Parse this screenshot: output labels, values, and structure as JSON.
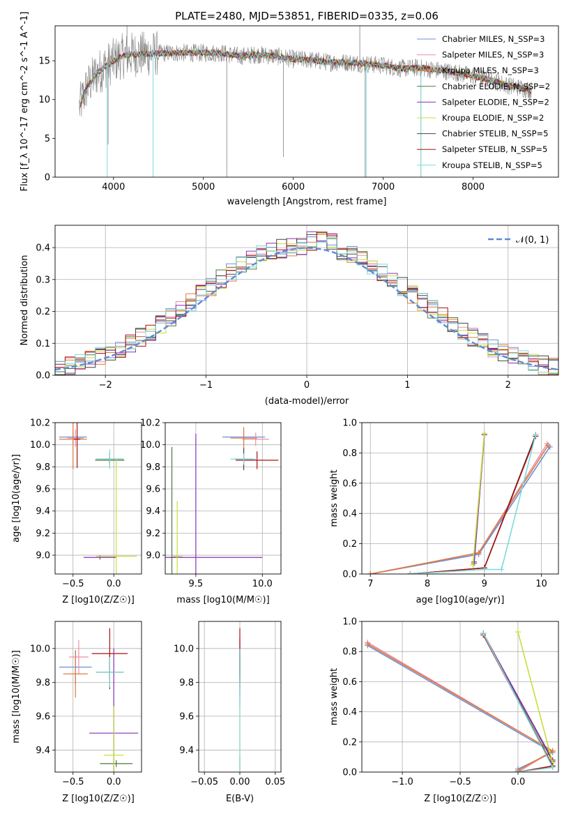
{
  "title": "PLATE=2480, MJD=53851, FIBERID=0335, z=0.06",
  "colors": {
    "chab_miles": "#6a8fd8",
    "salp_miles": "#e98fa6",
    "krou_miles": "#e07a3a",
    "chab_elodie": "#4a7a3a",
    "salp_elodie": "#8a2fb5",
    "krou_elodie": "#c8de3a",
    "chab_stelib": "#444444",
    "salp_stelib": "#a81010",
    "krou_stelib": "#7fd9d9",
    "data": "#808080",
    "normal": "#5b8ad6",
    "grid": "#b0b0b0"
  },
  "chart_data": [
    {
      "type": "line",
      "id": "spectrum",
      "title": "PLATE=2480, MJD=53851, FIBERID=0335, z=0.06",
      "xlabel": "wavelength [Angstrom, rest frame]",
      "ylabel": "Flux [f_λ 10^-17 erg cm^-2 s^-1 A^-1]",
      "xlim": [
        3350,
        8950
      ],
      "ylim": [
        0,
        19.5
      ],
      "xticks": [
        "4000",
        "5000",
        "6000",
        "7000",
        "8000"
      ],
      "yticks": [
        "0",
        "5",
        "10",
        "15"
      ],
      "legend_position": "upper right",
      "legend": [
        "Chabrier MILES, N_SSP=3",
        "Salpeter MILES, N_SSP=3",
        "Kroupa MILES, N_SSP=3",
        "Chabrier ELODIE, N_SSP=2",
        "Salpeter ELODIE, N_SSP=2",
        "Kroupa ELODIE, N_SSP=2",
        "Chabrier STELIB, N_SSP=5",
        "Salpeter STELIB, N_SSP=5",
        "Kroupa STELIB, N_SSP=5"
      ],
      "continuum_x": [
        3620,
        3700,
        3800,
        3900,
        4000,
        4100,
        4200,
        4400,
        4600,
        4800,
        5000,
        5200,
        5400,
        5600,
        5800,
        6000,
        6200,
        6400,
        6600,
        6800,
        7000,
        7200,
        7400,
        7600,
        7800,
        8000,
        8200,
        8400,
        8650
      ],
      "continuum_y": [
        9.0,
        11.5,
        13.2,
        14.2,
        15.0,
        15.6,
        15.8,
        15.9,
        16.0,
        16.0,
        16.0,
        16.0,
        15.6,
        15.8,
        15.6,
        15.2,
        15.1,
        14.8,
        14.8,
        14.6,
        14.4,
        14.0,
        14.1,
        13.8,
        13.5,
        13.0,
        12.5,
        11.8,
        11.2
      ],
      "spikes": [
        {
          "x": 3940,
          "y": 4.2
        },
        {
          "x": 4440,
          "y": 0.0
        },
        {
          "x": 5260,
          "y": 0.0
        },
        {
          "x": 5890,
          "y": 2.6
        },
        {
          "x": 6800,
          "y": 0.0
        },
        {
          "x": 7420,
          "y": 0.0
        },
        {
          "x": 6740,
          "y": 19.5
        },
        {
          "x": 4150,
          "y": 19.5
        }
      ]
    },
    {
      "type": "bar",
      "id": "residuals",
      "xlabel": "(data-model)/error",
      "ylabel": "Normed distribution",
      "xlim": [
        -2.5,
        2.5
      ],
      "ylim": [
        0,
        0.47
      ],
      "xticks": [
        "−2",
        "−1",
        "0",
        "1",
        "2"
      ],
      "yticks": [
        "0.0",
        "0.1",
        "0.2",
        "0.3",
        "0.4"
      ],
      "legend_position": "upper right",
      "legend": [
        "𝒩(0, 1)"
      ],
      "bin_width": 0.1
    },
    {
      "type": "scatter",
      "id": "age_vs_Z",
      "xlabel": "Z [log10(Z/Z☉)]",
      "ylabel": "age  [log10(age/yr)]",
      "xlim": [
        -0.72,
        0.34
      ],
      "ylim": [
        8.83,
        10.2
      ],
      "xticks": [
        "−0.5",
        "0.0"
      ],
      "yticks": [
        "9.0",
        "9.2",
        "9.4",
        "9.6",
        "9.8",
        "10.0",
        "10.2"
      ],
      "points": [
        {
          "model": "chab_miles",
          "x": -0.5,
          "y": 10.07,
          "xerr": 0.17,
          "yerr": 0.06
        },
        {
          "model": "salp_miles",
          "x": -0.47,
          "y": 10.06,
          "xerr": 0.1,
          "yerr": 0.08
        },
        {
          "model": "krou_miles",
          "x": -0.5,
          "y": 10.05,
          "xerr": 0.17,
          "yerr": 0.27
        },
        {
          "model": "chab_elodie",
          "x": -0.05,
          "y": 9.86,
          "xerr": 0.18,
          "yerr": 0.03
        },
        {
          "model": "salp_elodie",
          "x": -0.17,
          "y": 8.98,
          "xerr": 0.2,
          "yerr": 0.02
        },
        {
          "model": "krou_elodie",
          "x": 0.03,
          "y": 8.99,
          "xerr": 0.25,
          "yerr": 0.88
        },
        {
          "model": "chab_stelib",
          "x": -0.05,
          "y": 9.87,
          "xerr": 0.17,
          "yerr": 0.06
        },
        {
          "model": "salp_stelib",
          "x": -0.45,
          "y": 10.05,
          "xerr": 0.04,
          "yerr": 0.26
        },
        {
          "model": "krou_stelib",
          "x": -0.05,
          "y": 9.87,
          "xerr": 0.17,
          "yerr": 0.09
        }
      ]
    },
    {
      "type": "scatter",
      "id": "age_vs_mass",
      "xlabel": "mass [log10(M/M☉)]",
      "ylabel": "",
      "xlim": [
        9.27,
        10.14
      ],
      "ylim": [
        8.83,
        10.2
      ],
      "xticks": [
        "9.5",
        "10.0"
      ],
      "yticks": [
        "9.0",
        "9.2",
        "9.4",
        "9.6",
        "9.8",
        "10.0",
        "10.2"
      ],
      "points": [
        {
          "model": "chab_miles",
          "x": 9.86,
          "y": 10.07,
          "xerr": 0.16,
          "yerr": 0.06
        },
        {
          "model": "salp_miles",
          "x": 9.95,
          "y": 10.05,
          "xerr": 0.1,
          "yerr": 0.06
        },
        {
          "model": "krou_miles",
          "x": 9.86,
          "y": 10.06,
          "xerr": 0.1,
          "yerr": 0.1
        },
        {
          "model": "chab_elodie",
          "x": 9.32,
          "y": 8.98,
          "xerr": 0.02,
          "yerr": 1.0
        },
        {
          "model": "salp_elodie",
          "x": 9.5,
          "y": 8.98,
          "xerr": 0.5,
          "yerr": 1.12
        },
        {
          "model": "krou_elodie",
          "x": 9.36,
          "y": 8.99,
          "xerr": 0.04,
          "yerr": 0.5
        },
        {
          "model": "chab_stelib",
          "x": 9.86,
          "y": 9.87,
          "xerr": 0.07,
          "yerr": 0.1
        },
        {
          "model": "salp_stelib",
          "x": 9.96,
          "y": 9.86,
          "xerr": 0.16,
          "yerr": 0.08
        },
        {
          "model": "krou_stelib",
          "x": 9.86,
          "y": 9.87,
          "xerr": 0.1,
          "yerr": 0.05
        }
      ]
    },
    {
      "type": "line",
      "id": "weight_vs_age",
      "xlabel": "age  [log10(age/yr)]",
      "ylabel": "mass weight",
      "xlim": [
        6.85,
        10.3
      ],
      "ylim": [
        0,
        1
      ],
      "xticks": [
        "7",
        "8",
        "9",
        "10"
      ],
      "yticks": [
        "0.0",
        "0.2",
        "0.4",
        "0.6",
        "0.8",
        "1.0"
      ],
      "series": [
        {
          "model": "chab_miles",
          "x": [
            7.0,
            8.9,
            10.15
          ],
          "y": [
            0.0,
            0.13,
            0.84
          ]
        },
        {
          "model": "salp_miles",
          "x": [
            7.0,
            8.9,
            10.1
          ],
          "y": [
            0.0,
            0.14,
            0.86
          ]
        },
        {
          "model": "krou_miles",
          "x": [
            7.0,
            8.9,
            10.12
          ],
          "y": [
            0.0,
            0.14,
            0.85
          ]
        },
        {
          "model": "chab_elodie",
          "x": [
            8.82,
            9.0
          ],
          "y": [
            0.07,
            0.92
          ]
        },
        {
          "model": "salp_elodie",
          "x": [
            8.82,
            9.0
          ],
          "y": [
            0.08,
            0.92
          ]
        },
        {
          "model": "krou_elodie",
          "x": [
            8.8,
            9.0
          ],
          "y": [
            0.06,
            0.93
          ]
        },
        {
          "model": "chab_stelib",
          "x": [
            7.7,
            9.0,
            9.9
          ],
          "y": [
            0.0,
            0.04,
            0.92
          ]
        },
        {
          "model": "salp_stelib",
          "x": [
            7.7,
            9.0,
            9.9
          ],
          "y": [
            0.0,
            0.04,
            0.91
          ]
        },
        {
          "model": "krou_stelib",
          "x": [
            7.7,
            9.0,
            9.3,
            9.9
          ],
          "y": [
            0.0,
            0.03,
            0.03,
            0.92
          ]
        }
      ]
    },
    {
      "type": "scatter",
      "id": "mass_vs_Z",
      "xlabel": "Z [log10(Z/Z☉)]",
      "ylabel": "mass [log10(M/M☉)]",
      "xlim": [
        -0.72,
        0.34
      ],
      "ylim": [
        9.27,
        10.16
      ],
      "xticks": [
        "−0.5",
        "0.0"
      ],
      "yticks": [
        "9.4",
        "9.6",
        "9.8",
        "10.0"
      ],
      "points": [
        {
          "model": "chab_miles",
          "x": -0.47,
          "y": 9.89,
          "xerr": 0.2,
          "yerr": 0.1
        },
        {
          "model": "salp_miles",
          "x": -0.43,
          "y": 9.95,
          "xerr": 0.12,
          "yerr": 0.1
        },
        {
          "model": "krou_miles",
          "x": -0.47,
          "y": 9.85,
          "xerr": 0.15,
          "yerr": 0.14
        },
        {
          "model": "chab_elodie",
          "x": 0.03,
          "y": 9.32,
          "xerr": 0.2,
          "yerr": 0.02
        },
        {
          "model": "salp_elodie",
          "x": 0.0,
          "y": 9.5,
          "xerr": 0.3,
          "yerr": 0.5
        },
        {
          "model": "krou_elodie",
          "x": 0.0,
          "y": 9.37,
          "xerr": 0.12,
          "yerr": 0.29
        },
        {
          "model": "chab_stelib",
          "x": -0.05,
          "y": 9.86,
          "xerr": 0.17,
          "yerr": 0.1
        },
        {
          "model": "salp_stelib",
          "x": -0.05,
          "y": 9.97,
          "xerr": 0.22,
          "yerr": 0.15
        },
        {
          "model": "krou_stelib",
          "x": -0.05,
          "y": 9.86,
          "xerr": 0.17,
          "yerr": 0.09
        }
      ]
    },
    {
      "type": "scatter",
      "id": "mass_vs_ebv",
      "xlabel": "E(B-V)",
      "ylabel": "",
      "xlim": [
        -0.058,
        0.058
      ],
      "ylim": [
        9.27,
        10.16
      ],
      "xticks": [
        "−0.05",
        "0.00",
        "0.05"
      ],
      "yticks": [
        "9.4",
        "9.6",
        "9.8",
        "10.0"
      ],
      "points": [
        {
          "model": "chab_miles",
          "x": 0.0,
          "y": 9.86,
          "xerr": 0.0,
          "yerr": 0.14
        },
        {
          "model": "salp_miles",
          "x": 0.0,
          "y": 9.92,
          "xerr": 0.0,
          "yerr": 0.12
        },
        {
          "model": "krou_miles",
          "x": 0.0,
          "y": 9.86,
          "xerr": 0.0,
          "yerr": 0.1
        },
        {
          "model": "chab_elodie",
          "x": 0.0,
          "y": 9.32,
          "xerr": 0.0,
          "yerr": 0.04
        },
        {
          "model": "salp_elodie",
          "x": 0.0,
          "y": 9.86,
          "xerr": 0.0,
          "yerr": 0.2
        },
        {
          "model": "krou_elodie",
          "x": 0.0,
          "y": 9.5,
          "xerr": 0.0,
          "yerr": 0.17
        },
        {
          "model": "chab_stelib",
          "x": 0.0,
          "y": 9.9,
          "xerr": 0.0,
          "yerr": 0.1
        },
        {
          "model": "salp_stelib",
          "x": 0.0,
          "y": 9.98,
          "xerr": 0.0,
          "yerr": 0.14
        },
        {
          "model": "krou_stelib",
          "x": 0.0,
          "y": 9.55,
          "xerr": 0.0,
          "yerr": 0.45
        }
      ]
    },
    {
      "type": "line",
      "id": "weight_vs_Z",
      "xlabel": "Z [log10(Z/Z☉)]",
      "ylabel": "mass weight",
      "xlim": [
        -1.35,
        0.35
      ],
      "ylim": [
        0,
        1
      ],
      "xticks": [
        "−1.0",
        "−0.5",
        "0.0"
      ],
      "yticks": [
        "0.0",
        "0.2",
        "0.4",
        "0.6",
        "0.8",
        "1.0"
      ],
      "series": [
        {
          "model": "chab_miles",
          "x": [
            -1.3,
            0.3,
            0.0
          ],
          "y": [
            0.84,
            0.13,
            0.02
          ]
        },
        {
          "model": "salp_miles",
          "x": [
            -1.3,
            0.3,
            0.0
          ],
          "y": [
            0.86,
            0.14,
            0.0
          ]
        },
        {
          "model": "krou_miles",
          "x": [
            -1.3,
            0.3,
            0.0
          ],
          "y": [
            0.85,
            0.14,
            0.01
          ]
        },
        {
          "model": "chab_elodie",
          "x": [
            -0.3,
            0.3
          ],
          "y": [
            0.92,
            0.07
          ]
        },
        {
          "model": "salp_elodie",
          "x": [
            -0.3,
            0.3
          ],
          "y": [
            0.92,
            0.08
          ]
        },
        {
          "model": "krou_elodie",
          "x": [
            0.0,
            0.3
          ],
          "y": [
            0.93,
            0.06
          ]
        },
        {
          "model": "chab_stelib",
          "x": [
            -0.3,
            0.3,
            0.0
          ],
          "y": [
            0.92,
            0.04,
            0.0
          ]
        },
        {
          "model": "salp_stelib",
          "x": [
            -0.3,
            0.3,
            0.0
          ],
          "y": [
            0.91,
            0.04,
            0.0
          ]
        },
        {
          "model": "krou_stelib",
          "x": [
            -0.3,
            0.3,
            0.0
          ],
          "y": [
            0.92,
            0.03,
            0.0
          ]
        }
      ]
    }
  ]
}
